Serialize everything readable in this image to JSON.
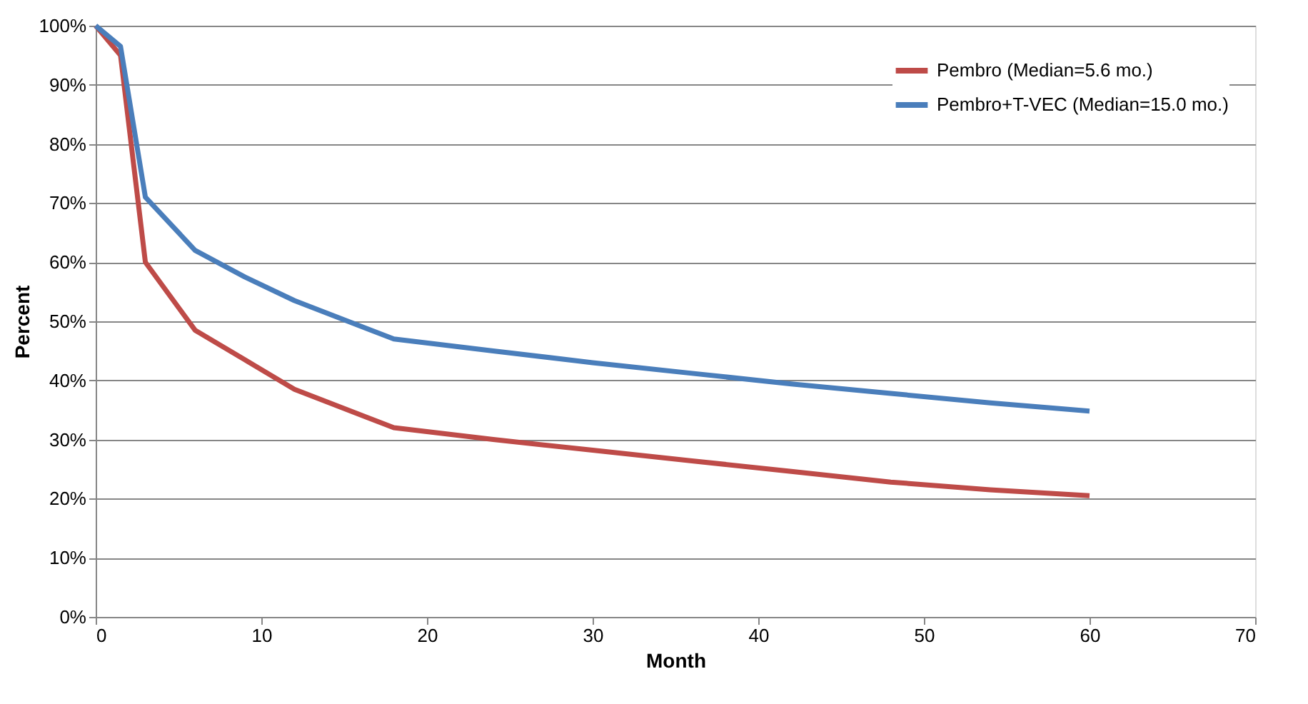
{
  "chart_data": {
    "type": "line",
    "xlabel": "Month",
    "ylabel": "Percent",
    "xlim": [
      0,
      70
    ],
    "xticks": [
      0,
      10,
      20,
      30,
      40,
      50,
      60,
      70
    ],
    "ylim": [
      0,
      100
    ],
    "yticks": [
      {
        "value": 0,
        "label": "0%"
      },
      {
        "value": 10,
        "label": "10%"
      },
      {
        "value": 20,
        "label": "20%"
      },
      {
        "value": 30,
        "label": "30%"
      },
      {
        "value": 40,
        "label": "40%"
      },
      {
        "value": 50,
        "label": "50%"
      },
      {
        "value": 60,
        "label": "60%"
      },
      {
        "value": 70,
        "label": "70%"
      },
      {
        "value": 80,
        "label": "80%"
      },
      {
        "value": 90,
        "label": "90%"
      },
      {
        "value": 100,
        "label": "100%"
      }
    ],
    "grid": "y",
    "legend": "top right",
    "marker": "none",
    "line_style": "solid",
    "series": [
      {
        "name": "Pembro (Median=5.6 mo.)",
        "color": "#be4b48",
        "x": [
          0,
          1.5,
          3,
          6,
          9,
          12,
          18,
          24,
          30,
          36,
          42,
          48,
          54,
          60
        ],
        "values": [
          100,
          95,
          60,
          48.5,
          43.5,
          38.5,
          32,
          30,
          28.2,
          26.4,
          24.6,
          22.8,
          21.5,
          20.5
        ]
      },
      {
        "name": "Pembro+T-VEC (Median=15.0 mo.)",
        "color": "#4a7ebb",
        "x": [
          0,
          1.5,
          3,
          6,
          9,
          12,
          18,
          24,
          30,
          36,
          42,
          48,
          54,
          60
        ],
        "values": [
          100,
          96.5,
          71,
          62,
          57.5,
          53.5,
          47,
          45,
          43,
          41.2,
          39.4,
          37.8,
          36.2,
          34.8
        ]
      }
    ]
  }
}
